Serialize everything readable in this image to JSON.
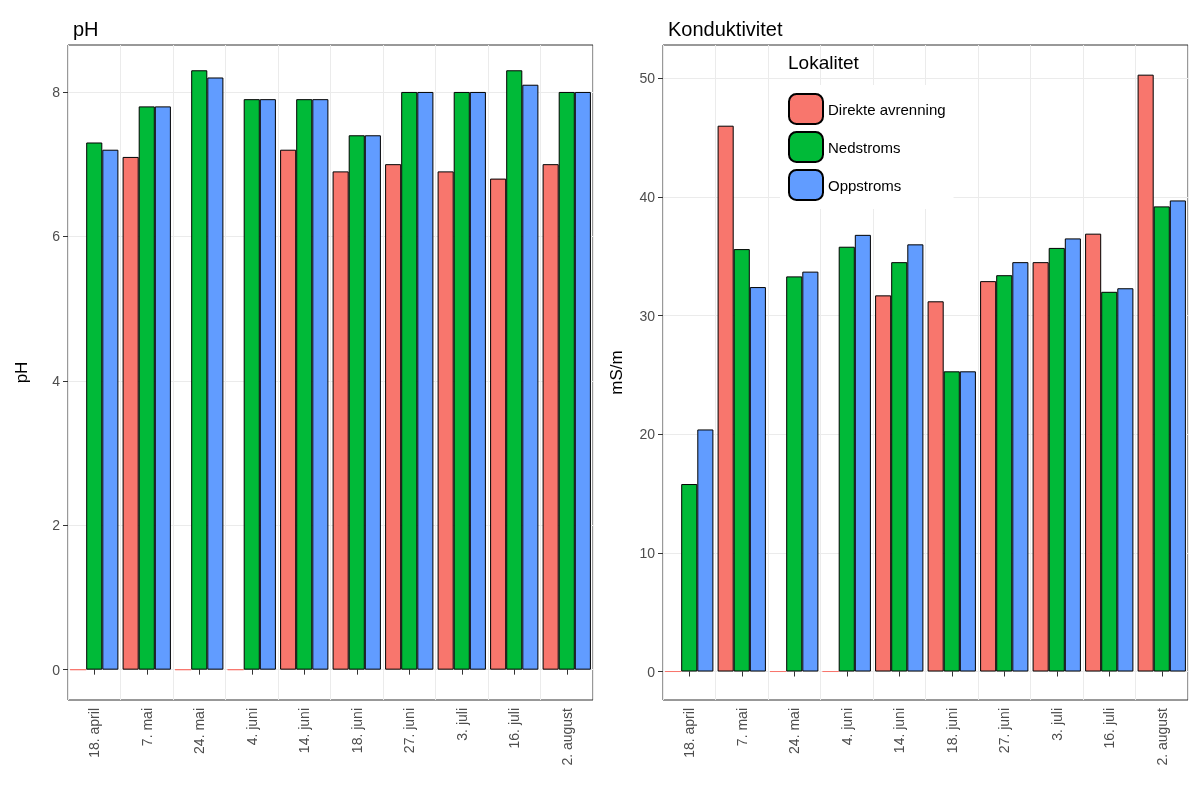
{
  "chart_data": [
    {
      "type": "bar",
      "title": "pH",
      "ylabel": "pH",
      "categories": [
        "18. april",
        "7. mai",
        "24. mai",
        "4. juni",
        "14. juni",
        "18. juni",
        "27. juni",
        "3. juli",
        "16. juli",
        "2. august"
      ],
      "series": [
        {
          "color": "#f8766d",
          "values": [
            0,
            7.1,
            0,
            0,
            7.2,
            6.9,
            7.0,
            6.9,
            6.8,
            7.0
          ]
        },
        {
          "color": "#00ba38",
          "values": [
            7.3,
            7.8,
            8.3,
            7.9,
            7.9,
            7.4,
            8.0,
            8.0,
            8.3,
            8.0
          ]
        },
        {
          "color": "#619cff",
          "values": [
            7.2,
            7.8,
            8.2,
            7.9,
            7.9,
            7.4,
            8.0,
            8.0,
            8.1,
            8.0
          ]
        }
      ],
      "ylim": [
        -0.42,
        8.65
      ],
      "yticks": [
        0,
        2,
        4,
        6,
        8
      ],
      "grid": true,
      "legend": false
    },
    {
      "type": "bar",
      "title": "Konduktivitet",
      "ylabel": "mS/m",
      "legend_title": "Lokalitet",
      "categories": [
        "18. april",
        "7. mai",
        "24. mai",
        "4. juni",
        "14. juni",
        "18. juni",
        "27. juni",
        "3. juli",
        "16. juli",
        "2. august"
      ],
      "series": [
        {
          "name": "Direkte avrenning",
          "color": "#f8766d",
          "values": [
            0,
            46.0,
            0,
            0,
            31.7,
            31.2,
            32.9,
            34.5,
            36.9,
            50.3
          ]
        },
        {
          "name": "Nedstroms",
          "color": "#00ba38",
          "values": [
            15.8,
            35.6,
            33.3,
            35.8,
            34.5,
            25.3,
            33.4,
            35.7,
            32.0,
            39.2
          ]
        },
        {
          "name": "Oppstroms",
          "color": "#619cff",
          "values": [
            20.4,
            32.4,
            33.7,
            36.8,
            36.0,
            25.3,
            34.5,
            36.5,
            32.3,
            39.7
          ]
        }
      ],
      "ylim": [
        -2.4,
        52.8
      ],
      "yticks": [
        0,
        10,
        20,
        30,
        40,
        50
      ],
      "grid": true,
      "legend": "top left"
    }
  ]
}
